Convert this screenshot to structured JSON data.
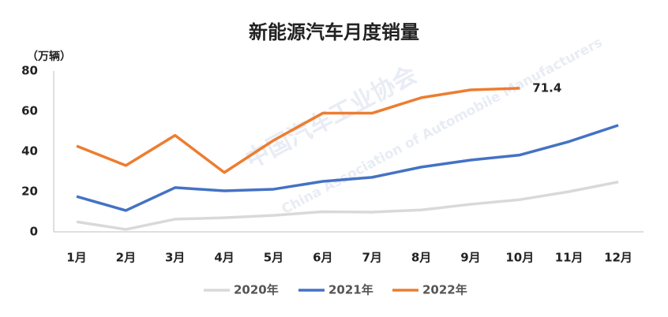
{
  "chart_data": {
    "type": "line",
    "title": "新能源汽车月度销量",
    "y_axis_label": "（万辆）",
    "watermark": [
      "中国汽车工业协会",
      "China Association of Automobile Manufacturers"
    ],
    "categories": [
      "1月",
      "2月",
      "3月",
      "4月",
      "5月",
      "6月",
      "7月",
      "8月",
      "9月",
      "10月",
      "11月",
      "12月"
    ],
    "series": [
      {
        "name": "2020年",
        "color": "#d9d9d9",
        "values": [
          5,
          1.2,
          6.3,
          7,
          8.2,
          10,
          9.8,
          10.9,
          13.7,
          16,
          20,
          24.8
        ]
      },
      {
        "name": "2021年",
        "color": "#4472c4",
        "values": [
          17.6,
          10.6,
          22,
          20.4,
          21.2,
          25.1,
          27.1,
          32.2,
          35.7,
          38.2,
          44.9,
          53
        ]
      },
      {
        "name": "2022年",
        "color": "#ed7d31",
        "values": [
          42.7,
          33,
          48,
          29.5,
          45.5,
          59,
          59,
          66.7,
          70.6,
          71.4,
          null,
          null
        ],
        "show_last_value": true
      }
    ],
    "ylim": [
      0,
      80
    ],
    "yticks": [
      0,
      20,
      40,
      60,
      80
    ],
    "grid": false,
    "legend": "bottom"
  }
}
